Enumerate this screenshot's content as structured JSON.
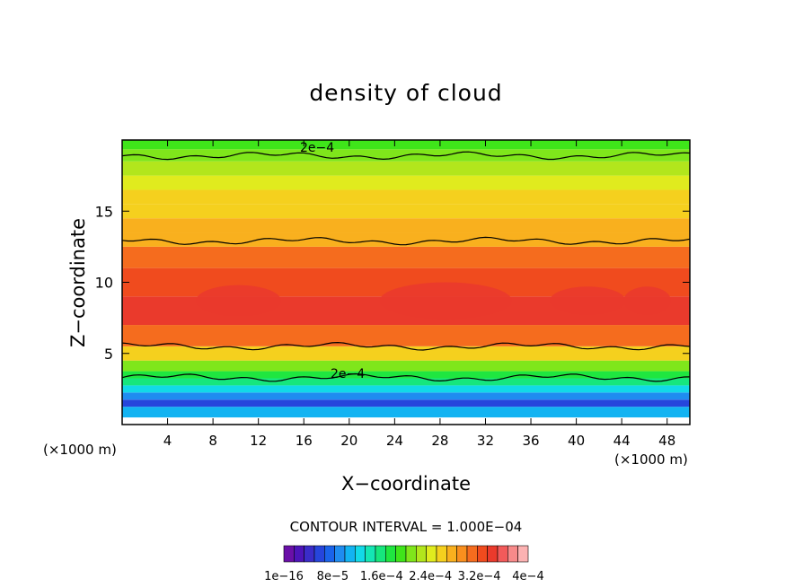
{
  "chart_data": {
    "type": "heatmap",
    "title": "density of cloud",
    "xlabel": "X−coordinate",
    "ylabel": "Z−coordinate",
    "x_unit": "(×1000 m)",
    "y_unit": "(×1000 m)",
    "x_ticks": [
      "4",
      "8",
      "12",
      "16",
      "20",
      "24",
      "28",
      "32",
      "36",
      "40",
      "44",
      "48"
    ],
    "y_ticks": [
      "5",
      "10",
      "15"
    ],
    "xlim": [
      0,
      50
    ],
    "ylim": [
      0,
      20
    ],
    "contour_interval_label": "CONTOUR INTERVAL = 1.000E−04",
    "contour_labels": [
      "2e−4",
      "2e−4"
    ],
    "colorbar_labels": [
      "1e−16",
      "8e−5",
      "1.6e−4",
      "2.4e−4",
      "3.2e−4",
      "4e−4"
    ],
    "colorbar_colors": [
      "#6a0fa8",
      "#4d14b9",
      "#3a2cc9",
      "#2645dc",
      "#1a63ea",
      "#1f8cf0",
      "#12b3f2",
      "#12d9e8",
      "#14e6b4",
      "#16e67d",
      "#1fe640",
      "#3fe51a",
      "#7fe61b",
      "#b2e61c",
      "#e0eb1e",
      "#f5d01e",
      "#f9b01e",
      "#f98f1e",
      "#f56c1e",
      "#f04b1e",
      "#ea3a2c",
      "#f25a5a",
      "#f88a8a",
      "#fcb2b2"
    ],
    "profile_z": [
      1,
      1.5,
      2,
      2.5,
      3,
      3.5,
      4,
      5,
      6,
      8,
      10,
      12,
      13,
      14,
      15,
      16,
      17,
      18,
      19,
      19.7
    ],
    "profile_density_e4": [
      1.0,
      0.5,
      0.9,
      1.2,
      1.5,
      1.8,
      2.0,
      2.5,
      3.0,
      3.4,
      3.2,
      3.0,
      2.8,
      2.7,
      2.6,
      2.5,
      2.4,
      2.3,
      2.1,
      1.9
    ],
    "contour_z_levels": [
      3.3,
      5.5,
      12.9,
      18.9
    ]
  }
}
